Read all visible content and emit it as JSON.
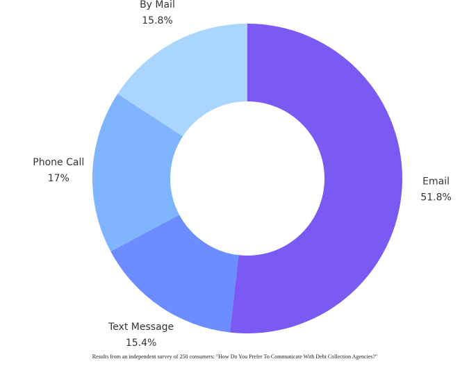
{
  "chart_data": {
    "type": "donut",
    "categories": [
      "Email",
      "Text Message",
      "Phone Call",
      "By Mail"
    ],
    "values": [
      51.8,
      15.4,
      17,
      15.8
    ],
    "value_labels": [
      "51.8%",
      "15.4%",
      "17%",
      "15.8%"
    ],
    "colors": [
      "#7b5af4",
      "#6c8dff",
      "#80b4ff",
      "#a9d5ff"
    ],
    "caption": "Results from an independent survey of 250 consumers: \"How Do You Prefer To Communicate With Debt Collection Agencies?\""
  }
}
